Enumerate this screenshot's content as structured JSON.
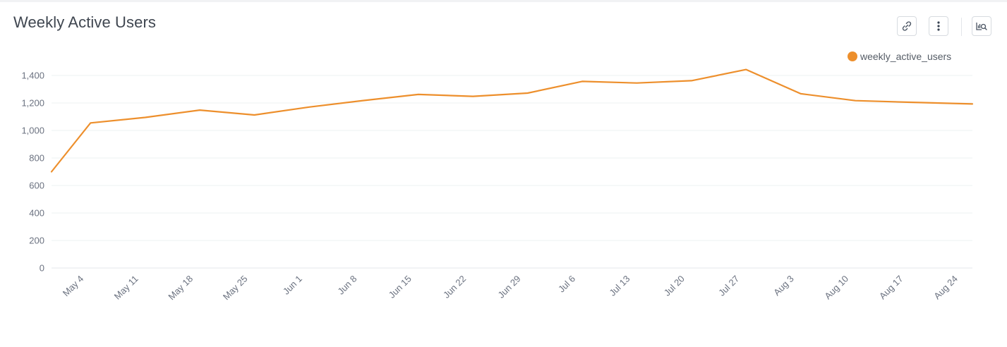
{
  "header": {
    "title": "Weekly Active Users"
  },
  "toolbar": {
    "buttons": [
      {
        "name": "copy-link",
        "icon": "link-icon"
      },
      {
        "name": "more-options",
        "icon": "vertical-dots-icon"
      },
      {
        "name": "explore",
        "icon": "chart-search-icon"
      }
    ]
  },
  "chart_data": {
    "type": "line",
    "title": "Weekly Active Users",
    "xlabel": "",
    "ylabel": "",
    "ylim": [
      0,
      1400
    ],
    "yticks": [
      0,
      200,
      400,
      600,
      800,
      1000,
      1200,
      1400
    ],
    "ytick_labels": [
      "0",
      "200",
      "400",
      "600",
      "800",
      "1,000",
      "1,200",
      "1,400"
    ],
    "x_tick_labels": [
      "May 4",
      "May 11",
      "May 18",
      "May 25",
      "Jun 1",
      "Jun 8",
      "Jun 15",
      "Jun 22",
      "Jun 29",
      "Jul 6",
      "Jul 13",
      "Jul 20",
      "Jul 27",
      "Aug 3",
      "Aug 10",
      "Aug 17",
      "Aug 24"
    ],
    "grid": true,
    "legend_position": "top-right",
    "series": [
      {
        "name": "weekly_active_users",
        "color": "#ed8f2c",
        "points": [
          {
            "x": "2020-04-30",
            "y": 700
          },
          {
            "x": "2020-05-05",
            "y": 1055
          },
          {
            "x": "2020-05-12",
            "y": 1095
          },
          {
            "x": "2020-05-19",
            "y": 1148
          },
          {
            "x": "2020-05-26",
            "y": 1113
          },
          {
            "x": "2020-06-02",
            "y": 1170
          },
          {
            "x": "2020-06-09",
            "y": 1218
          },
          {
            "x": "2020-06-16",
            "y": 1262
          },
          {
            "x": "2020-06-23",
            "y": 1248
          },
          {
            "x": "2020-06-30",
            "y": 1272
          },
          {
            "x": "2020-07-07",
            "y": 1357
          },
          {
            "x": "2020-07-14",
            "y": 1345
          },
          {
            "x": "2020-07-21",
            "y": 1362
          },
          {
            "x": "2020-07-28",
            "y": 1443
          },
          {
            "x": "2020-08-04",
            "y": 1267
          },
          {
            "x": "2020-08-11",
            "y": 1217
          },
          {
            "x": "2020-08-18",
            "y": 1205
          },
          {
            "x": "2020-08-26",
            "y": 1193
          }
        ]
      }
    ]
  }
}
